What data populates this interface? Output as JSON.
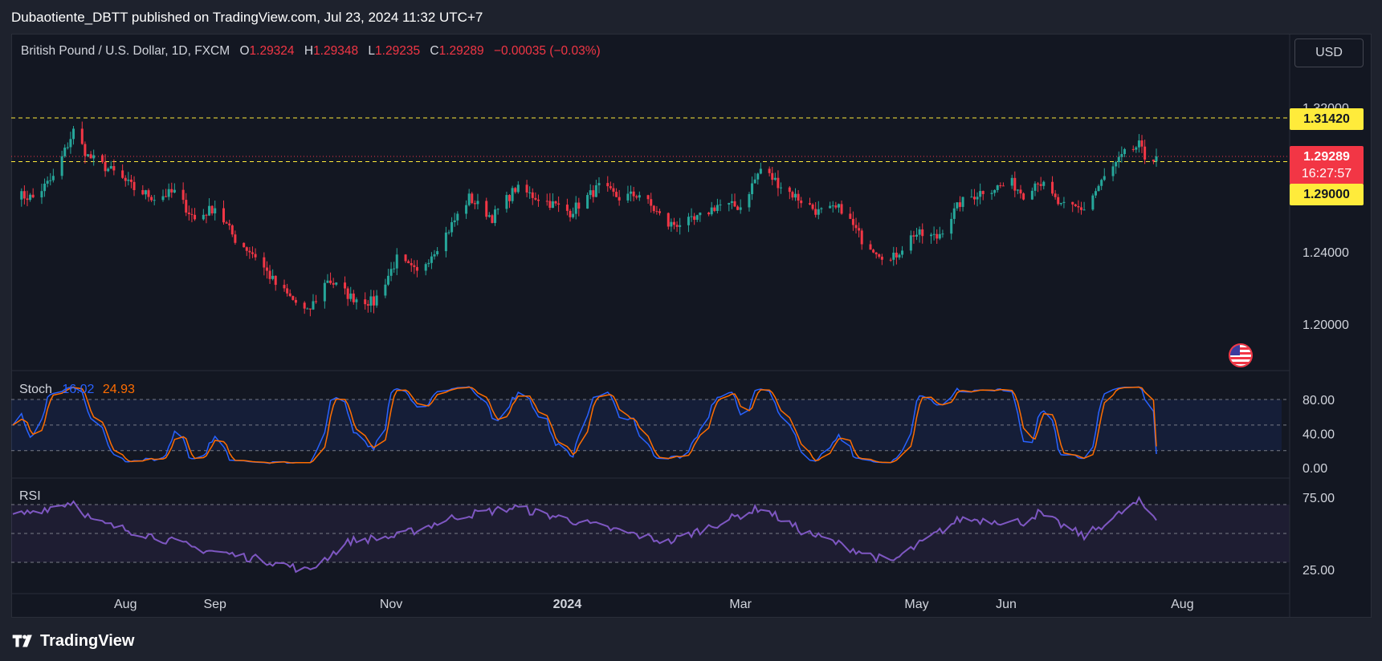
{
  "header": {
    "publisher": "Dubaotiente_DBTT published on TradingView.com, Jul 23, 2024 11:32 UTC+7"
  },
  "legend": {
    "symbol": "British Pound / U.S. Dollar, 1D, FXCM",
    "o_label": "O",
    "o_value": "1.29324",
    "h_label": "H",
    "h_value": "1.29348",
    "l_label": "L",
    "l_value": "1.29235",
    "c_label": "C",
    "c_value": "1.29289",
    "change": "−0.00035 (−0.03%)"
  },
  "currency_button": "USD",
  "price_tags": {
    "resistance": "1.31420",
    "last_price": "1.29289",
    "countdown": "16:27:57",
    "support": "1.29000"
  },
  "stoch_legend": {
    "name": "Stoch",
    "k": "16.02",
    "d": "24.93"
  },
  "rsi_legend": {
    "name": "RSI"
  },
  "footer": {
    "logo_text": "TradingView"
  },
  "colors": {
    "background": "#131722",
    "up": "#26a69a",
    "down": "#f23645",
    "level": "#ffeb3b",
    "stoch_k": "#2962ff",
    "stoch_d": "#ff6d00",
    "rsi": "#7e57c2"
  },
  "chart_data": [
    {
      "type": "candlestick",
      "title": "British Pound / U.S. Dollar, 1D, FXCM",
      "ylim": [
        1.17,
        1.345
      ],
      "y_ticks": [
        "1.32000",
        "1.24000",
        "1.20000"
      ],
      "x_ticks": [
        "Aug",
        "Sep",
        "Nov",
        "2024",
        "Mar",
        "May",
        "Jun",
        "Aug"
      ],
      "horizontal_levels": [
        1.3142,
        1.29
      ],
      "close_anchors": [
        [
          "2023-06-23",
          1.272
        ],
        [
          "2023-06-30",
          1.27
        ],
        [
          "2023-07-07",
          1.281
        ],
        [
          "2023-07-14",
          1.307
        ],
        [
          "2023-07-19",
          1.293
        ],
        [
          "2023-07-28",
          1.284
        ],
        [
          "2023-08-04",
          1.275
        ],
        [
          "2023-08-11",
          1.27
        ],
        [
          "2023-08-18",
          1.273
        ],
        [
          "2023-08-25",
          1.258
        ],
        [
          "2023-09-01",
          1.265
        ],
        [
          "2023-09-08",
          1.247
        ],
        [
          "2023-09-15",
          1.238
        ],
        [
          "2023-09-22",
          1.222
        ],
        [
          "2023-10-03",
          1.206
        ],
        [
          "2023-10-10",
          1.225
        ],
        [
          "2023-10-18",
          1.215
        ],
        [
          "2023-10-26",
          1.212
        ],
        [
          "2023-11-03",
          1.236
        ],
        [
          "2023-11-10",
          1.228
        ],
        [
          "2023-11-20",
          1.25
        ],
        [
          "2023-11-28",
          1.27
        ],
        [
          "2023-12-06",
          1.259
        ],
        [
          "2023-12-14",
          1.275
        ],
        [
          "2023-12-22",
          1.27
        ],
        [
          "2024-01-02",
          1.262
        ],
        [
          "2024-01-12",
          1.276
        ],
        [
          "2024-01-19",
          1.27
        ],
        [
          "2024-01-26",
          1.272
        ],
        [
          "2024-02-05",
          1.255
        ],
        [
          "2024-02-14",
          1.257
        ],
        [
          "2024-02-22",
          1.266
        ],
        [
          "2024-03-01",
          1.265
        ],
        [
          "2024-03-08",
          1.286
        ],
        [
          "2024-03-18",
          1.273
        ],
        [
          "2024-03-28",
          1.262
        ],
        [
          "2024-04-05",
          1.264
        ],
        [
          "2024-04-12",
          1.247
        ],
        [
          "2024-04-22",
          1.235
        ],
        [
          "2024-04-30",
          1.25
        ],
        [
          "2024-05-08",
          1.248
        ],
        [
          "2024-05-16",
          1.267
        ],
        [
          "2024-05-24",
          1.274
        ],
        [
          "2024-06-03",
          1.278
        ],
        [
          "2024-06-07",
          1.272
        ],
        [
          "2024-06-12",
          1.28
        ],
        [
          "2024-06-20",
          1.265
        ],
        [
          "2024-06-28",
          1.264
        ],
        [
          "2024-07-05",
          1.281
        ],
        [
          "2024-07-12",
          1.294
        ],
        [
          "2024-07-17",
          1.299
        ],
        [
          "2024-07-19",
          1.292
        ],
        [
          "2024-07-23",
          1.29289
        ]
      ]
    },
    {
      "type": "line",
      "title": "Stoch",
      "ylim": [
        0,
        100
      ],
      "y_ticks": [
        80,
        40,
        0
      ],
      "bands": [
        20,
        50,
        80
      ],
      "series": [
        {
          "name": "%K",
          "last": 16.02
        },
        {
          "name": "%D",
          "last": 24.93
        }
      ]
    },
    {
      "type": "line",
      "title": "RSI",
      "ylim": [
        20,
        80
      ],
      "y_ticks": [
        75,
        25
      ],
      "bands": [
        30,
        50,
        70
      ],
      "series_anchors": [
        [
          "2023-06-23",
          62
        ],
        [
          "2023-07-14",
          72
        ],
        [
          "2023-07-21",
          58
        ],
        [
          "2023-08-11",
          48
        ],
        [
          "2023-08-25",
          40
        ],
        [
          "2023-09-22",
          30
        ],
        [
          "2023-10-03",
          24
        ],
        [
          "2023-10-18",
          45
        ],
        [
          "2023-11-03",
          48
        ],
        [
          "2023-11-24",
          62
        ],
        [
          "2023-12-14",
          68
        ],
        [
          "2024-01-05",
          58
        ],
        [
          "2024-02-05",
          44
        ],
        [
          "2024-03-08",
          68
        ],
        [
          "2024-03-22",
          52
        ],
        [
          "2024-04-22",
          30
        ],
        [
          "2024-05-16",
          60
        ],
        [
          "2024-06-07",
          58
        ],
        [
          "2024-06-12",
          64
        ],
        [
          "2024-06-28",
          48
        ],
        [
          "2024-07-17",
          72
        ],
        [
          "2024-07-23",
          60
        ]
      ]
    }
  ]
}
